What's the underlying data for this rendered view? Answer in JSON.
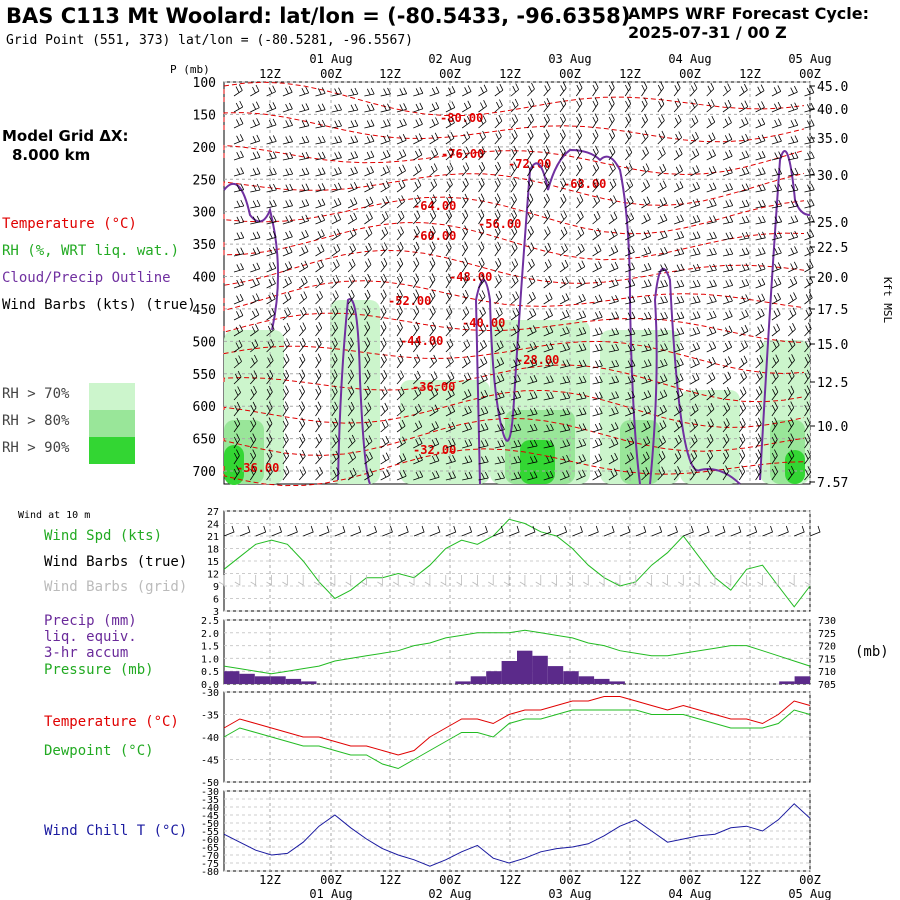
{
  "header": {
    "title": "BAS C113 Mt Woolard:  lat/lon = (-80.5433, -96.6358)",
    "subtitle": "Grid Point (551, 373) lat/lon = (-80.5281, -96.5567)",
    "cycle_line1": "AMPS WRF Forecast Cycle:",
    "cycle_line2": "2025-07-31 / 00  Z"
  },
  "model_grid": {
    "line1": "Model Grid ΔX:",
    "line2": "8.000 km"
  },
  "legend": {
    "temperature": "Temperature (°C)",
    "rh": "RH (%, WRT liq. wat.)",
    "cloud": "Cloud/Precip Outline",
    "wind_barbs": "Wind Barbs (kts) (true)",
    "rh_bins": [
      {
        "label": "RH > 70%",
        "color": "#ccf5cc"
      },
      {
        "label": "RH > 80%",
        "color": "#99e699"
      },
      {
        "label": "RH > 90%",
        "color": "#33d633"
      }
    ]
  },
  "time_axis": {
    "top_hours": [
      "12Z",
      "00Z",
      "12Z",
      "00Z",
      "12Z",
      "00Z",
      "12Z",
      "00Z",
      "12Z",
      "00Z"
    ],
    "top_dates": [
      "01 Aug",
      "02 Aug",
      "03 Aug",
      "04 Aug",
      "05 Aug"
    ],
    "bottom_hours": [
      "12Z",
      "00Z",
      "12Z",
      "00Z",
      "12Z",
      "00Z",
      "12Z",
      "00Z",
      "12Z",
      "00Z"
    ],
    "bottom_dates": [
      "01 Aug",
      "02 Aug",
      "03 Aug",
      "04 Aug",
      "05 Aug"
    ]
  },
  "chart_data": [
    {
      "type": "heatmap",
      "pressure_label": "P (mb)",
      "pressure_ticks": [
        100,
        150,
        200,
        250,
        300,
        350,
        400,
        450,
        500,
        550,
        600,
        650,
        700
      ],
      "height_label": "Kft MSL",
      "height_ticks": [
        "45.0",
        "40.0",
        "35.0",
        "30.0",
        "25.0",
        "22.5",
        "20.0",
        "17.5",
        "15.0",
        "12.5",
        "10.0",
        "7.57"
      ],
      "temperature_contour_labels": [
        "-80.00",
        "-76.00",
        "-72.00",
        "-68.00",
        "-64.00",
        "-60.00",
        "-56.00",
        "-48.00",
        "-52.00",
        "-40.00",
        "-44.00",
        "-28.00",
        "-36.00",
        "-32.00",
        "-36.00"
      ],
      "colors": {
        "temperature": "#e00000",
        "rh": "#22bb22",
        "cloud": "#7030a0"
      }
    },
    {
      "type": "line",
      "title": "Wind at 10 m",
      "series_labels": [
        "Wind Spd (kts)",
        "Wind Barbs (true)",
        "Wind Barbs (grid)"
      ],
      "y_ticks": [
        "27",
        "24",
        "21",
        "18",
        "15",
        "12",
        "9",
        "6",
        "3"
      ],
      "ylim": [
        3,
        27
      ],
      "wind_speed": [
        13,
        16,
        19,
        20,
        19,
        15,
        10,
        6,
        8,
        11,
        11,
        12,
        11,
        14,
        18,
        20,
        19,
        21,
        25,
        24,
        22,
        21,
        18,
        14,
        11,
        9,
        10,
        14,
        17,
        21,
        16,
        11,
        8,
        13,
        14,
        9,
        4,
        9
      ]
    },
    {
      "type": "bar",
      "series_labels": [
        "Precip (mm)",
        "liq. equiv.",
        "3-hr accum",
        "Pressure (mb)"
      ],
      "y_ticks_left": [
        "2.5",
        "2.0",
        "1.5",
        "1.0",
        "0.5",
        "0.0"
      ],
      "y_ticks_right": [
        "730",
        "725",
        "720",
        "715",
        "710",
        "705"
      ],
      "right_unit": "(mb)",
      "ylim_left": [
        0,
        2.5
      ],
      "ylim_right": [
        705,
        730
      ],
      "precip": [
        0.5,
        0.4,
        0.3,
        0.3,
        0.2,
        0.1,
        0,
        0,
        0,
        0,
        0,
        0,
        0,
        0,
        0,
        0.1,
        0.3,
        0.5,
        0.9,
        1.3,
        1.1,
        0.7,
        0.5,
        0.3,
        0.2,
        0.1,
        0,
        0,
        0,
        0,
        0,
        0,
        0,
        0,
        0,
        0,
        0.1,
        0.3
      ],
      "pressure": [
        712,
        711,
        710,
        709,
        710,
        711,
        712,
        714,
        715,
        716,
        717,
        718,
        720,
        721,
        723,
        724,
        725,
        725,
        725,
        726,
        725,
        724,
        723,
        721,
        720,
        718,
        717,
        716,
        716,
        717,
        718,
        719,
        720,
        720,
        718,
        716,
        714,
        712
      ]
    },
    {
      "type": "line",
      "series_labels": [
        "Temperature (°C)",
        "Dewpoint (°C)"
      ],
      "y_ticks": [
        "-30",
        "-35",
        "-40",
        "-45",
        "-50"
      ],
      "ylim": [
        -50,
        -30
      ],
      "temperature": [
        -38,
        -36,
        -37,
        -38,
        -39,
        -40,
        -40,
        -41,
        -42,
        -42,
        -43,
        -44,
        -43,
        -40,
        -38,
        -36,
        -36,
        -37,
        -35,
        -34,
        -34,
        -33,
        -32,
        -32,
        -31,
        -31,
        -32,
        -33,
        -34,
        -33,
        -34,
        -35,
        -36,
        -36,
        -37,
        -35,
        -32,
        -33
      ],
      "dewpoint": [
        -40,
        -38,
        -39,
        -40,
        -41,
        -42,
        -42,
        -43,
        -44,
        -44,
        -46,
        -47,
        -45,
        -43,
        -41,
        -39,
        -39,
        -40,
        -37,
        -36,
        -36,
        -35,
        -34,
        -34,
        -34,
        -34,
        -34,
        -35,
        -35,
        -35,
        -36,
        -37,
        -38,
        -38,
        -38,
        -37,
        -34,
        -35
      ]
    },
    {
      "type": "line",
      "series_labels": [
        "Wind Chill T (°C)"
      ],
      "y_ticks": [
        "-30",
        "-35",
        "-40",
        "-45",
        "-50",
        "-55",
        "-60",
        "-65",
        "-70",
        "-75",
        "-80"
      ],
      "ylim": [
        -80,
        -30
      ],
      "wind_chill": [
        -57,
        -62,
        -67,
        -70,
        -69,
        -62,
        -52,
        -45,
        -53,
        -60,
        -66,
        -70,
        -73,
        -77,
        -73,
        -68,
        -64,
        -72,
        -75,
        -72,
        -68,
        -66,
        -65,
        -63,
        -58,
        -52,
        -48,
        -55,
        -62,
        -60,
        -58,
        -57,
        -53,
        -52,
        -55,
        -48,
        -38,
        -47
      ]
    }
  ]
}
